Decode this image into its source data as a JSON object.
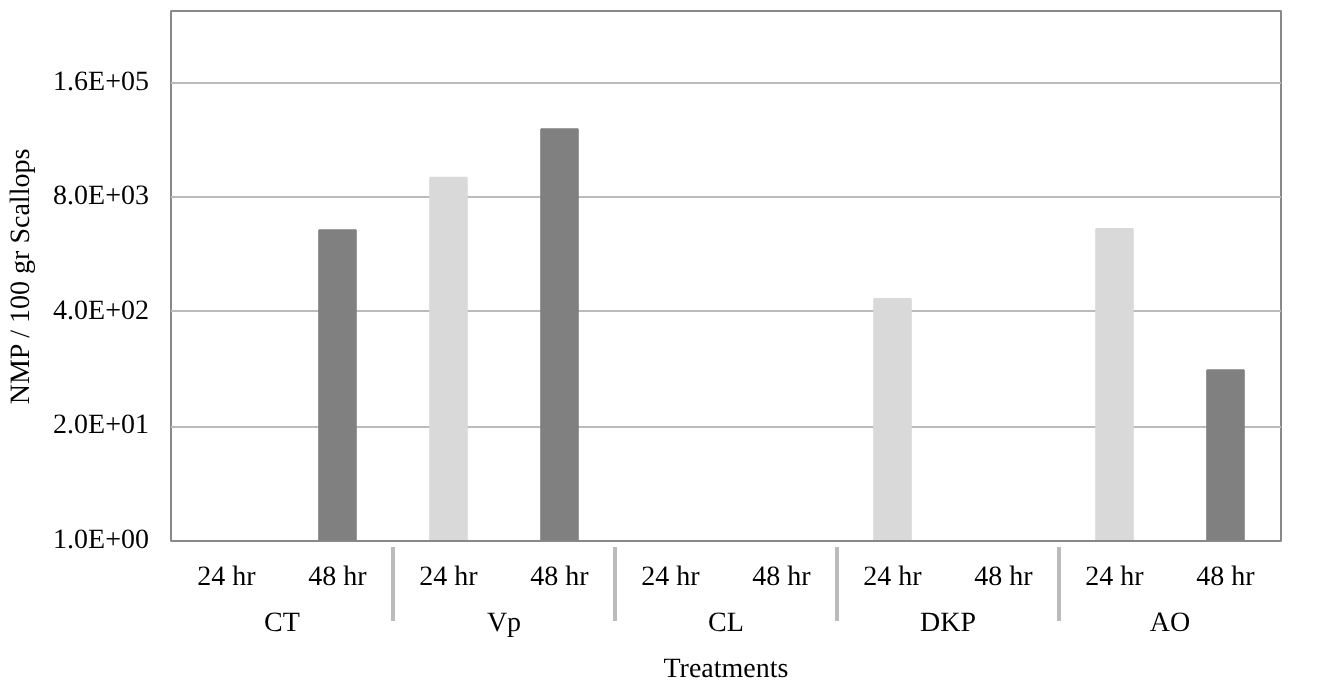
{
  "chart_data": {
    "type": "bar",
    "xlabel": "Treatments",
    "ylabel": "NMP / 100 gr Scallops",
    "categories": [
      "24 hr",
      "48 hr",
      "24 hr",
      "48 hr",
      "24 hr",
      "48 hr",
      "24 hr",
      "48 hr",
      "24 hr",
      "48 hr"
    ],
    "annotations": [
      "CT",
      "Vp",
      "CL",
      "DKP",
      "AO"
    ],
    "values": [
      null,
      3400,
      13400,
      47600,
      null,
      null,
      560,
      null,
      3500,
      87
    ],
    "colors": [
      "#d9d9d9",
      "#808080",
      "#d9d9d9",
      "#808080",
      "#d9d9d9",
      "#808080",
      "#d9d9d9",
      "#808080",
      "#d9d9d9",
      "#808080"
    ],
    "log": "y",
    "ylim": [
      1,
      1050000
    ],
    "yticks": [
      {
        "value": 1,
        "label": "1.0E+00"
      },
      {
        "value": 20,
        "label": "2.0E+01"
      },
      {
        "value": 400,
        "label": "4.0E+02"
      },
      {
        "value": 8000,
        "label": "8.0E+03"
      },
      {
        "value": 160000,
        "label": "1.6E+05"
      }
    ],
    "grid": "y"
  }
}
